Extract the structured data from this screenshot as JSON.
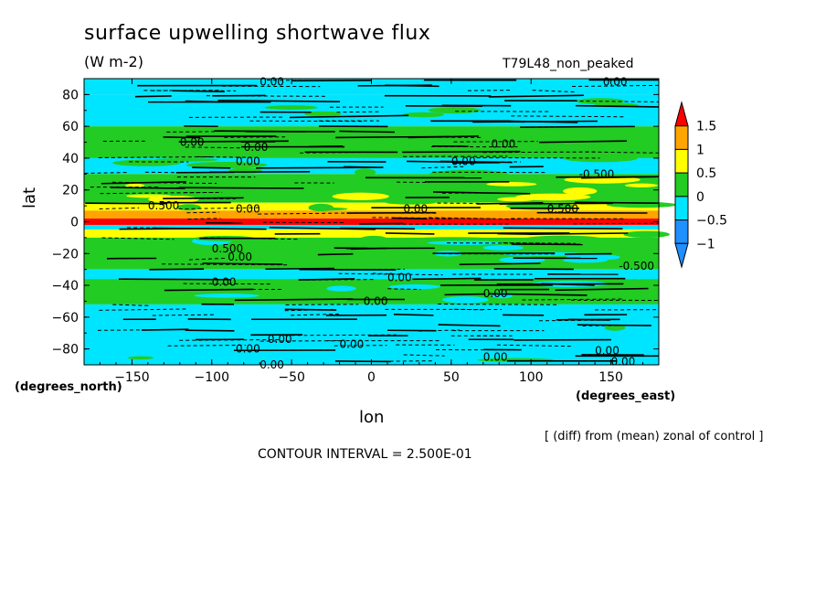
{
  "chart_data": {
    "type": "heatmap",
    "title": "surface upwelling shortwave flux",
    "units": "(W m-2)",
    "run_label": "T79L48_non_peaked",
    "xlabel": "lon",
    "ylabel": "lat",
    "x_units_label": "(degrees_east)",
    "y_units_label": "(degrees_north)",
    "xlim": [
      -180,
      180
    ],
    "ylim": [
      -90,
      90
    ],
    "x_ticks": [
      -150,
      -100,
      -50,
      0,
      50,
      100,
      150
    ],
    "y_ticks": [
      80,
      60,
      40,
      20,
      0,
      -20,
      -40,
      -60,
      -80
    ],
    "note": "[ (diff) from (mean) zonal of control ]",
    "contour_interval_text": "CONTOUR INTERVAL = 2.500E-01",
    "contour_labels": [
      "0.00",
      "0.500",
      "-0.500"
    ],
    "colorbar": {
      "levels": [
        -1,
        -0.5,
        0,
        0.5,
        1,
        1.5
      ],
      "tick_labels": [
        "1.5",
        "1",
        "0.5",
        "0",
        "-0.5",
        "-1"
      ],
      "colors": [
        "#1e90ff",
        "#00e5ff",
        "#22cc22",
        "#ffff00",
        "#ffa500",
        "#ff0000"
      ]
    },
    "zonal_bands": [
      {
        "lat_min": 80,
        "lat_max": 90,
        "class": "-0.5..0"
      },
      {
        "lat_min": 60,
        "lat_max": 80,
        "class": "-0.5..0"
      },
      {
        "lat_min": 40,
        "lat_max": 60,
        "class": "0..0.5"
      },
      {
        "lat_min": 30,
        "lat_max": 40,
        "class": "-0.5..0"
      },
      {
        "lat_min": 12,
        "lat_max": 30,
        "class": "0..0.5"
      },
      {
        "lat_min": 7,
        "lat_max": 12,
        "class": "0.5..1"
      },
      {
        "lat_min": 2,
        "lat_max": 7,
        "class": "1..1.5"
      },
      {
        "lat_min": -2,
        "lat_max": 2,
        "class": ">1.5"
      },
      {
        "lat_min": -5,
        "lat_max": -2,
        "class": "-0.5..0"
      },
      {
        "lat_min": -10,
        "lat_max": -5,
        "class": "0.5..1"
      },
      {
        "lat_min": -30,
        "lat_max": -10,
        "class": "0..0.5"
      },
      {
        "lat_min": -36,
        "lat_max": -30,
        "class": "-0.5..0"
      },
      {
        "lat_min": -52,
        "lat_max": -36,
        "class": "0..0.5"
      },
      {
        "lat_min": -90,
        "lat_max": -52,
        "class": "-0.5..0"
      }
    ]
  }
}
